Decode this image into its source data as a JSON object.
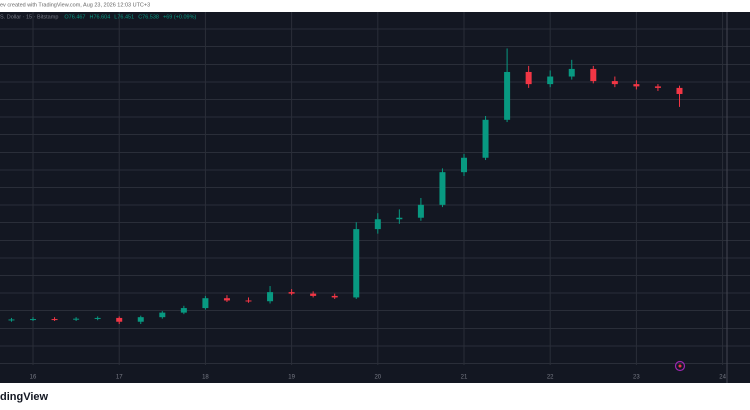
{
  "chart_data": {
    "type": "candlestick",
    "subtitle": "ev created with TradingView.com, Aug 23, 2026 12:03 UTC+3",
    "title": "S. Dollar · 15 · Bitstamp",
    "legend_values": [
      "O76.467",
      "H76.604",
      "L76.451",
      "C76.538",
      "+69 (+0.09%)"
    ],
    "footer": "dingView",
    "up_color": "#089981",
    "down_color": "#f23645",
    "xlim": [
      15.617,
      24.318
    ],
    "xticks": [
      16,
      17,
      18,
      19,
      20,
      21,
      22,
      23,
      24
    ],
    "ylim": [
      40,
      86.5
    ],
    "grid": true,
    "x": [
      15.75,
      16,
      16.25,
      16.5,
      16.75,
      17,
      17.25,
      17.5,
      17.75,
      18,
      18.25,
      18.5,
      18.75,
      19,
      19.25,
      19.5,
      19.75,
      20,
      20.25,
      20.5,
      20.75,
      21,
      21.25,
      21.5,
      21.75,
      22,
      22.25,
      22.5,
      22.75,
      23,
      23.25,
      23.5
    ],
    "open": [
      45.9,
      46.0,
      46.05,
      46.0,
      46.1,
      46.2,
      45.7,
      46.3,
      46.9,
      47.5,
      48.8,
      48.5,
      48.4,
      49.6,
      49.4,
      49.1,
      48.9,
      57.9,
      59.2,
      59.4,
      61.1,
      65.4,
      67.3,
      72.3,
      78.6,
      77.0,
      78.0,
      79.0,
      77.4,
      77.0,
      76.7,
      76.5
    ],
    "high": [
      46.2,
      46.3,
      46.3,
      46.3,
      46.4,
      46.4,
      46.5,
      47.1,
      47.8,
      49.1,
      49.2,
      48.9,
      50.4,
      50.0,
      49.7,
      49.4,
      58.8,
      60.0,
      60.5,
      62.0,
      65.9,
      67.8,
      72.8,
      81.7,
      79.4,
      78.8,
      80.2,
      79.4,
      78.0,
      77.5,
      77.0,
      76.8
    ],
    "low": [
      45.7,
      45.8,
      45.8,
      45.8,
      45.9,
      45.4,
      45.4,
      46.1,
      46.7,
      47.3,
      48.3,
      48.2,
      48.1,
      49.2,
      48.9,
      48.7,
      48.7,
      57.3,
      58.6,
      59.0,
      60.8,
      64.9,
      67.0,
      72.0,
      76.5,
      76.6,
      77.6,
      77.1,
      76.6,
      76.3,
      76.1,
      74.0
    ],
    "close": [
      46.0,
      46.05,
      46.0,
      46.1,
      46.2,
      45.7,
      46.3,
      46.9,
      47.5,
      48.8,
      48.5,
      48.4,
      49.6,
      49.4,
      49.1,
      48.9,
      57.9,
      59.2,
      59.4,
      61.1,
      65.4,
      67.3,
      72.3,
      78.6,
      77.0,
      78.0,
      79.0,
      77.4,
      77.0,
      76.7,
      76.5,
      75.7
    ]
  }
}
